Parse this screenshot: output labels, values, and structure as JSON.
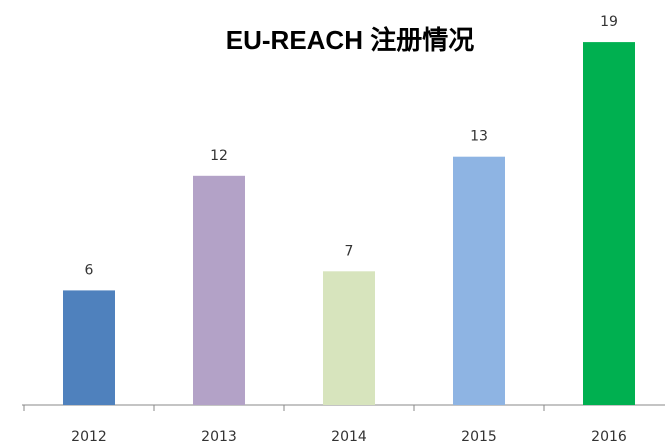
{
  "chart_data": {
    "type": "bar",
    "title": "EU-REACH 注册情况",
    "categories": [
      "2012",
      "2013",
      "2014",
      "2015",
      "2016"
    ],
    "values": [
      6,
      12,
      7,
      13,
      19
    ],
    "colors": [
      "#4f81bd",
      "#b3a2c7",
      "#d7e4bd",
      "#8eb4e3",
      "#00b050"
    ],
    "ylim": [
      0,
      20
    ]
  }
}
